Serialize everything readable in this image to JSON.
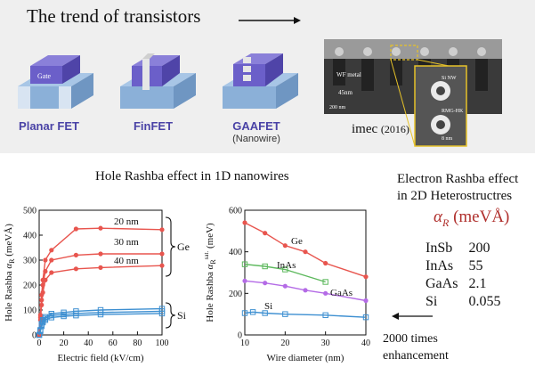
{
  "banner": {
    "title": "The trend of transistors",
    "devices": [
      {
        "label": "Planar FET",
        "sublabel": "",
        "gate_text": "Gate"
      },
      {
        "label": "FinFET",
        "sublabel": "",
        "gate_text": ""
      },
      {
        "label": "GAAFET",
        "sublabel": "(Nanowire)",
        "gate_text": ""
      }
    ],
    "tem": {
      "caption": "imec",
      "year": "(2016)",
      "labels": {
        "wf": "WF metal",
        "dim": "45nm",
        "si_nw": "Si NW",
        "rmg": "RMG-HK",
        "nm": "8 nm",
        "scale": "200 nm"
      }
    }
  },
  "section_title": "Hole Rashba effect in 1D nanowires",
  "rashba_table": {
    "title_line1": "Electron Rashba effect",
    "title_line2": "in 2D Heterostructres",
    "symbol": "α",
    "symbol_sub": "R",
    "unit": "(meVÅ)",
    "rows": [
      {
        "material": "InSb",
        "value": "200"
      },
      {
        "material": "InAs",
        "value": "55"
      },
      {
        "material": "GaAs",
        "value": "2.1"
      },
      {
        "material": "Si",
        "value": "0.055"
      }
    ]
  },
  "enhancement_note": {
    "line1": "2000 times",
    "line2": "enhancement"
  },
  "colors": {
    "ge": "#e8554e",
    "si": "#3d8fd1",
    "inas": "#5cb85c",
    "gaas": "#b46be6",
    "alpha": "#b0302d",
    "device": "#6b5fc9"
  },
  "chart_data": [
    {
      "type": "line",
      "xlabel": "Electric field (kV/cm)",
      "ylabel_main": "Hole Rashba",
      "ylabel_symbol": "α",
      "ylabel_sub": "R",
      "ylabel_unit": "(meVÅ)",
      "xlim": [
        0,
        100
      ],
      "ylim": [
        0,
        500
      ],
      "xticks": [
        0,
        20,
        40,
        60,
        80,
        100
      ],
      "yticks": [
        0,
        100,
        200,
        300,
        400,
        500
      ],
      "group_labels": [
        {
          "text": "Ge"
        },
        {
          "text": "Si"
        }
      ],
      "series": [
        {
          "name": "20 nm",
          "group": "Ge",
          "color": "#e8554e",
          "marker": "circle",
          "x": [
            0,
            1,
            2,
            3,
            5,
            10,
            30,
            50,
            100
          ],
          "y": [
            0,
            80,
            160,
            220,
            300,
            340,
            425,
            428,
            422
          ]
        },
        {
          "name": "30 nm",
          "group": "Ge",
          "color": "#e8554e",
          "marker": "circle",
          "x": [
            0,
            1,
            2,
            3,
            5,
            10,
            30,
            50,
            100
          ],
          "y": [
            0,
            70,
            140,
            200,
            255,
            300,
            320,
            325,
            325
          ]
        },
        {
          "name": "40 nm",
          "group": "Ge",
          "color": "#e8554e",
          "marker": "circle",
          "x": [
            0,
            1,
            2,
            3,
            5,
            10,
            30,
            50,
            100
          ],
          "y": [
            0,
            60,
            120,
            170,
            220,
            250,
            265,
            270,
            278
          ]
        },
        {
          "name": "",
          "group": "Si",
          "color": "#3d8fd1",
          "marker": "square",
          "x": [
            0,
            1,
            2,
            3,
            5,
            10,
            20,
            30,
            50,
            100
          ],
          "y": [
            0,
            20,
            45,
            60,
            72,
            85,
            90,
            95,
            100,
            105
          ]
        },
        {
          "name": "",
          "group": "Si",
          "color": "#3d8fd1",
          "marker": "square",
          "x": [
            0,
            1,
            2,
            3,
            5,
            10,
            20,
            30,
            50,
            100
          ],
          "y": [
            0,
            18,
            40,
            55,
            66,
            78,
            82,
            86,
            90,
            95
          ]
        },
        {
          "name": "",
          "group": "Si",
          "color": "#3d8fd1",
          "marker": "square",
          "x": [
            0,
            1,
            2,
            3,
            5,
            10,
            20,
            30,
            50,
            100
          ],
          "y": [
            0,
            15,
            35,
            50,
            60,
            70,
            75,
            78,
            82,
            86
          ]
        }
      ]
    },
    {
      "type": "line",
      "xlabel": "Wire diameter (nm)",
      "ylabel_main": "Hole Rashba",
      "ylabel_symbol": "α",
      "ylabel_sub": "R",
      "ylabel_sup": "sat.",
      "ylabel_unit": "(meV)",
      "xlim": [
        10,
        40
      ],
      "ylim": [
        0,
        600
      ],
      "xticks": [
        10,
        20,
        30,
        40
      ],
      "yticks": [
        0,
        200,
        400,
        600
      ],
      "series": [
        {
          "name": "Ge",
          "color": "#e8554e",
          "marker": "circle",
          "x": [
            10,
            15,
            20,
            25,
            30,
            40
          ],
          "y": [
            540,
            490,
            430,
            400,
            345,
            280
          ]
        },
        {
          "name": "InAs",
          "color": "#5cb85c",
          "marker": "square",
          "x": [
            10,
            15,
            20,
            30
          ],
          "y": [
            340,
            330,
            315,
            255
          ]
        },
        {
          "name": "GaAs",
          "color": "#b46be6",
          "marker": "circle",
          "x": [
            10,
            15,
            20,
            25,
            30,
            40
          ],
          "y": [
            260,
            250,
            235,
            215,
            200,
            165
          ]
        },
        {
          "name": "Si",
          "color": "#3d8fd1",
          "marker": "square",
          "x": [
            10,
            12,
            15,
            20,
            30,
            40
          ],
          "y": [
            105,
            110,
            105,
            100,
            95,
            85
          ]
        }
      ]
    }
  ]
}
